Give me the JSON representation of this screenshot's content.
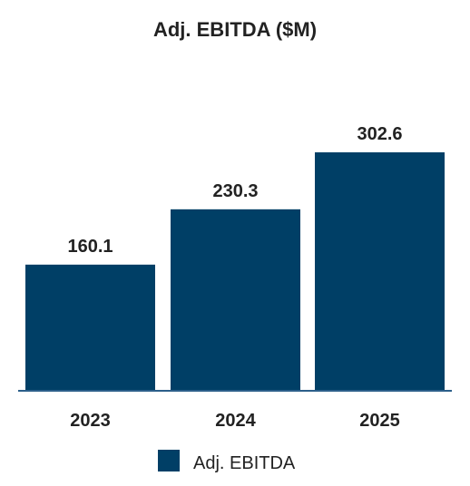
{
  "chart_data": {
    "type": "bar",
    "title": "Adj. EBITDA ($M)",
    "categories": [
      "2023",
      "2024",
      "2025"
    ],
    "series": [
      {
        "name": "Adj. EBITDA",
        "values": [
          160.1,
          230.3,
          302.6
        ],
        "data_labels": [
          "160.1",
          "230.3",
          "302.6"
        ],
        "color": "#003f66"
      }
    ],
    "ylim": [
      0,
      302.6
    ],
    "grid": false,
    "legend": "bottom-center",
    "axis_color": "#2c5f8a"
  }
}
